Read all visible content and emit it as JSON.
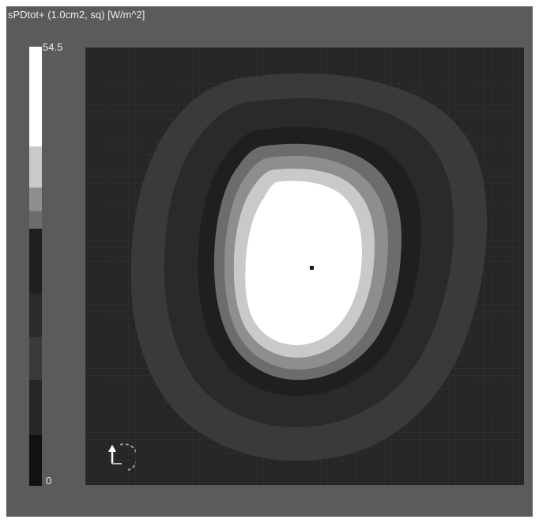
{
  "title": "sPDtot+ (1.0cm2, sq) [W/m^2]",
  "colorbar": {
    "max_label": "54.5",
    "min_label": "0",
    "levels": [
      "#ffffff",
      "#c9c9c9",
      "#8e8e8e",
      "#6c6c6c",
      "#1f1f1f",
      "#2a2a2a",
      "#3a3a3a",
      "#262626",
      "#111111"
    ]
  },
  "icons": {
    "orientation": "axis-triad-icon"
  }
}
